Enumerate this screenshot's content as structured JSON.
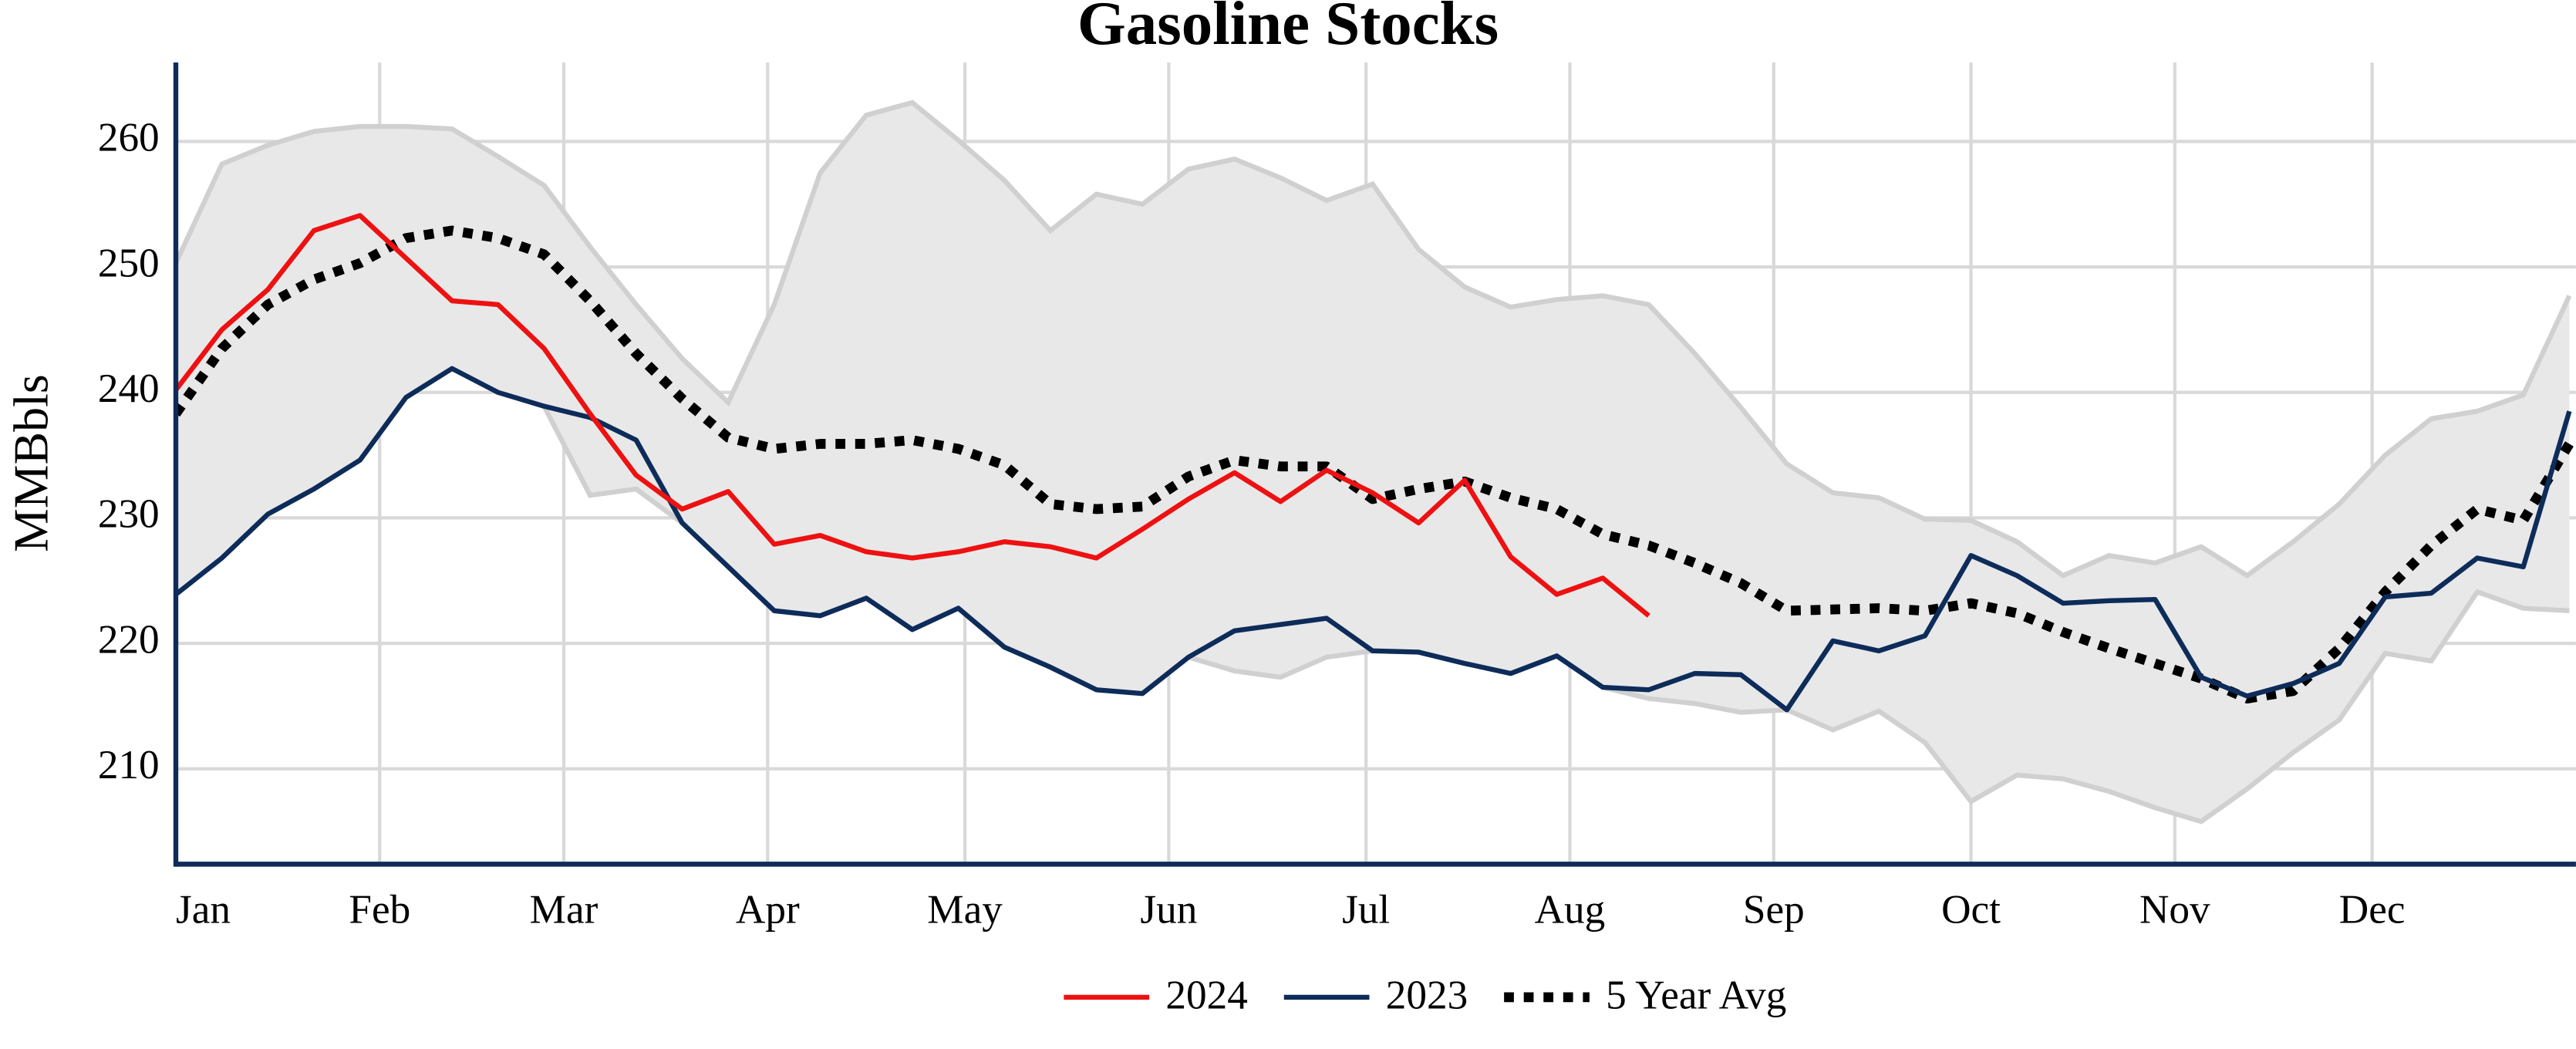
{
  "chart_data": {
    "type": "line",
    "title": "Gasoline Stocks",
    "y_label": "MMBbls",
    "x": [
      1,
      8,
      15,
      22,
      29,
      36,
      43,
      50,
      57,
      64,
      71,
      78,
      85,
      92,
      99,
      106,
      113,
      120,
      127,
      134,
      141,
      148,
      155,
      162,
      169,
      176,
      183,
      190,
      197,
      204,
      211,
      218,
      225,
      232,
      239,
      246,
      253,
      260,
      267,
      274,
      281,
      288,
      295,
      302,
      309,
      316,
      323,
      330,
      337,
      344,
      351,
      358,
      365
    ],
    "xlim": [
      1,
      366
    ],
    "xticks": [
      {
        "value": 1,
        "label": "Jan"
      },
      {
        "value": 32,
        "label": "Feb"
      },
      {
        "value": 60,
        "label": "Mar"
      },
      {
        "value": 91,
        "label": "Apr"
      },
      {
        "value": 121,
        "label": "May"
      },
      {
        "value": 152,
        "label": "Jun"
      },
      {
        "value": 182,
        "label": "Jul"
      },
      {
        "value": 213,
        "label": "Aug"
      },
      {
        "value": 244,
        "label": "Sep"
      },
      {
        "value": 274,
        "label": "Oct"
      },
      {
        "value": 305,
        "label": "Nov"
      },
      {
        "value": 335,
        "label": "Dec"
      }
    ],
    "ylim": [
      202.4,
      266.3
    ],
    "yticks": [
      210,
      220,
      230,
      240,
      250,
      260
    ],
    "grid": true,
    "legend": "bottom",
    "band": {
      "color": "#e8e8e8",
      "edge_color": "#d0d0d0",
      "upper": [
        250.3,
        258.2,
        259.7,
        260.8,
        261.2,
        261.2,
        261.0,
        258.8,
        256.5,
        251.6,
        247.0,
        242.7,
        239.2,
        247.0,
        257.5,
        262.1,
        263.1,
        260.1,
        256.9,
        252.9,
        255.8,
        255.0,
        257.8,
        258.6,
        257.1,
        255.3,
        256.6,
        251.4,
        248.4,
        246.8,
        247.4,
        247.7,
        247.0,
        243.1,
        238.8,
        234.3,
        232.0,
        231.6,
        229.9,
        229.8,
        228.1,
        225.4,
        227.0,
        226.4,
        227.7,
        225.4,
        228.1,
        231.1,
        235.0,
        237.9,
        238.5,
        239.8,
        247.7
      ],
      "lower": [
        223.9,
        226.8,
        230.3,
        232.3,
        234.6,
        239.6,
        241.9,
        240.0,
        238.9,
        231.8,
        232.3,
        229.6,
        226.1,
        222.6,
        222.2,
        223.6,
        221.1,
        222.8,
        219.7,
        218.1,
        216.3,
        216.0,
        218.9,
        217.8,
        217.3,
        218.9,
        219.4,
        219.3,
        218.4,
        217.6,
        219.0,
        216.5,
        215.6,
        215.2,
        214.5,
        214.7,
        213.1,
        214.6,
        212.1,
        207.4,
        209.5,
        209.2,
        208.2,
        206.9,
        205.8,
        208.4,
        211.3,
        213.9,
        219.2,
        218.6,
        224.1,
        222.8,
        222.6
      ]
    },
    "series": [
      {
        "name": "2024",
        "color": "#ee1111",
        "style": "solid",
        "values": [
          240.2,
          245.0,
          248.2,
          252.9,
          254.1,
          250.7,
          247.3,
          247.0,
          243.5,
          238.3,
          233.4,
          230.7,
          232.1,
          227.9,
          228.6,
          227.3,
          226.8,
          227.3,
          228.1,
          227.7,
          226.8,
          229.1,
          231.5,
          233.6,
          231.3,
          233.8,
          232.0,
          229.6,
          233.0,
          226.9,
          223.9,
          225.2,
          222.2,
          null,
          null,
          null,
          null,
          null,
          null,
          null,
          null,
          null,
          null,
          null,
          null,
          null,
          null,
          null,
          null,
          null,
          null,
          null,
          null
        ]
      },
      {
        "name": "2023",
        "color": "#0d2c5a",
        "style": "solid",
        "values": [
          223.9,
          226.8,
          230.3,
          232.3,
          234.6,
          239.6,
          241.9,
          240.0,
          238.9,
          238.0,
          236.2,
          229.6,
          226.1,
          222.6,
          222.2,
          223.6,
          221.1,
          222.8,
          219.7,
          218.1,
          216.3,
          216.0,
          218.9,
          221.0,
          221.5,
          222.0,
          219.4,
          219.3,
          218.4,
          217.6,
          219.0,
          216.5,
          216.3,
          217.6,
          217.5,
          214.7,
          220.2,
          219.4,
          220.6,
          227.0,
          225.4,
          223.2,
          223.4,
          223.5,
          217.3,
          215.8,
          216.8,
          218.4,
          223.7,
          224.0,
          226.8,
          226.1,
          238.5
        ]
      },
      {
        "name": "5 Year Avg",
        "color": "#000000",
        "style": "dotted",
        "values": [
          238.3,
          243.5,
          247.0,
          249.0,
          250.3,
          252.3,
          252.9,
          252.3,
          251.0,
          247.3,
          243.1,
          239.5,
          236.4,
          235.5,
          235.9,
          235.9,
          236.2,
          235.5,
          234.2,
          231.1,
          230.7,
          230.9,
          233.3,
          234.6,
          234.1,
          234.1,
          231.5,
          232.3,
          232.9,
          231.6,
          230.7,
          228.7,
          227.8,
          226.4,
          224.8,
          222.6,
          222.7,
          222.8,
          222.6,
          223.2,
          222.4,
          220.9,
          219.6,
          218.4,
          217.2,
          215.6,
          216.2,
          219.6,
          224.1,
          227.8,
          230.7,
          229.8,
          235.9
        ]
      }
    ]
  }
}
